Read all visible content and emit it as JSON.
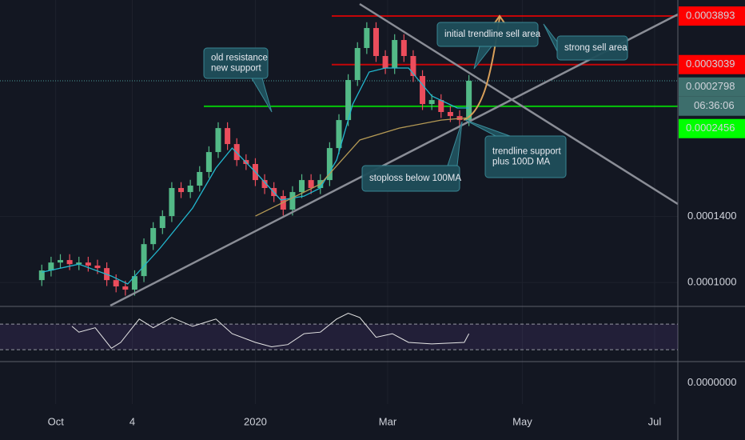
{
  "chart_data": [
    {
      "type": "candlestick",
      "x": [
        18,
        22,
        26,
        30,
        34,
        38,
        42,
        46,
        50,
        54,
        58,
        62,
        66,
        70,
        74,
        78,
        82,
        86,
        90,
        94,
        98,
        102,
        106,
        110,
        114,
        118,
        122,
        126,
        130,
        134,
        138,
        142,
        146,
        150,
        154,
        158,
        162,
        166,
        170,
        174,
        178,
        182,
        186,
        190,
        194,
        198,
        202
      ],
      "open": [
        0.0001012,
        0.0001063,
        0.0001107,
        0.0001121,
        0.0001098,
        0.0001107,
        0.000109,
        0.0001076,
        0.0001012,
        9.8e-05,
        9.64e-05,
        0.0001033,
        0.0001216,
        0.000132,
        0.0001403,
        0.0001619,
        0.0001586,
        0.0001639,
        0.0001757,
        0.0001945,
        0.0002198,
        0.0002026,
        0.0001867,
        0.000183,
        0.0001686,
        0.0001619,
        0.0001554,
        0.000145,
        0.0001586,
        0.0001686,
        0.0001619,
        0.0001686,
        0.0001985,
        0.000229,
        0.0002809,
        0.0003307,
        0.0003662,
        0.0003175,
        0.0002986,
        0.0003445,
        0.0003175,
        0.0002867,
        0.0002485,
        0.0002536,
        0.0002386,
        0.0002337,
        0.000229
      ],
      "high": [
        0.0001095,
        0.000114,
        0.0001155,
        0.0001155,
        0.000114,
        0.000114,
        0.0001123,
        0.0001108,
        0.0001042,
        0.0001009,
        0.0001064,
        0.0001252,
        0.000136,
        0.0001445,
        0.0001668,
        0.0001668,
        0.0001688,
        0.000181,
        0.0002003,
        0.0002264,
        0.0002264,
        0.0002087,
        0.0001923,
        0.0001885,
        0.0001737,
        0.0001668,
        0.0001601,
        0.0001634,
        0.0001737,
        0.0001737,
        0.0001737,
        0.0002045,
        0.0002359,
        0.0002893,
        0.0003406,
        0.0003772,
        0.0003772,
        0.000327,
        0.0003548,
        0.0003548,
        0.000327,
        0.0002953,
        0.0002612,
        0.0002612,
        0.0002458,
        0.0002407,
        0.0002882
      ],
      "low": [
        9.82e-05,
        0.0001031,
        0.0001074,
        0.0001065,
        0.0001065,
        0.0001057,
        0.0001044,
        9.82e-05,
        9.51e-05,
        9.35e-05,
        9.35e-05,
        0.0001002,
        0.000118,
        0.000128,
        0.0001361,
        0.0001538,
        0.0001538,
        0.000159,
        0.0001704,
        0.0001887,
        0.0001965,
        0.0001811,
        0.0001775,
        0.0001635,
        0.000157,
        0.0001507,
        0.0001407,
        0.0001407,
        0.0001538,
        0.000157,
        0.000157,
        0.0001635,
        0.0001925,
        0.0002221,
        0.0002725,
        0.0003208,
        0.000308,
        0.0002896,
        0.0002896,
        0.000308,
        0.0002781,
        0.000241,
        0.000241,
        0.0002314,
        0.0002267,
        0.0002221,
        0.0002221
      ],
      "close": [
        0.0001063,
        0.0001107,
        0.0001121,
        0.0001098,
        0.0001107,
        0.000109,
        0.0001076,
        0.0001012,
        9.8e-05,
        9.64e-05,
        0.0001033,
        0.0001216,
        0.000132,
        0.0001403,
        0.0001619,
        0.0001586,
        0.0001639,
        0.0001757,
        0.0001945,
        0.0002198,
        0.0002026,
        0.0001867,
        0.000183,
        0.0001686,
        0.0001619,
        0.0001554,
        0.000145,
        0.0001586,
        0.0001686,
        0.0001619,
        0.0001686,
        0.0001985,
        0.000229,
        0.0002809,
        0.0003307,
        0.0003662,
        0.0003175,
        0.0002986,
        0.0003445,
        0.0003175,
        0.0002867,
        0.0002485,
        0.0002536,
        0.0002386,
        0.0002337,
        0.000229,
        0.0002798
      ],
      "up_color": "#53b987",
      "down_color": "#eb4d5c",
      "xlim": [
        0,
        292
      ],
      "xticks": [
        {
          "value": 24,
          "label": "Oct"
        },
        {
          "value": 57,
          "label": "4"
        },
        {
          "value": 110,
          "label": "2020"
        },
        {
          "value": 167,
          "label": "Mar"
        },
        {
          "value": 225,
          "label": "May"
        },
        {
          "value": 282,
          "label": "Jul"
        }
      ],
      "ylim": [
        8.85e-05,
        0.0004225
      ],
      "log_scale": true,
      "yticks": [
        {
          "value": 0.00014,
          "label": "0.0001400"
        },
        {
          "value": 0.0001,
          "label": "0.0001000"
        }
      ],
      "grid": true,
      "overlays": [
        {
          "color": "#22b8cf",
          "x": [
            18,
            34,
            48,
            55,
            69,
            83,
            93,
            100,
            110,
            121,
            131,
            138,
            145,
            152,
            159,
            166,
            176,
            186,
            197,
            202
          ],
          "values": [
            0.0001054,
            0.0001098,
            0.0001033,
            9.92e-05,
            0.0001192,
            0.0001462,
            0.0001793,
            0.0001985,
            0.0001757,
            0.0001523,
            0.0001554,
            0.0001619,
            0.0001867,
            0.0002485,
            0.0002926,
            0.0002986,
            0.0002986,
            0.0002589,
            0.0002435,
            0.0002435
          ]
        },
        {
          "color": "#b59a55",
          "x": [
            110,
            138,
            155,
            172,
            190,
            202
          ],
          "values": [
            0.0001403,
            0.0001652,
            0.0002068,
            0.0002198,
            0.000229,
            0.0002318
          ]
        }
      ],
      "price_markers": [
        {
          "value": 0.0003893,
          "color": "#ff0000",
          "text_color": "#ffffff",
          "line": "solid"
        },
        {
          "value": 0.0003039,
          "color": "#ff0000",
          "text_color": "#ffffff",
          "line": "solid"
        },
        {
          "value": 0.0002798,
          "color": "#3d6e6c",
          "text_color": "#ffffff",
          "line": "dotted"
        },
        {
          "value": 0.0002456,
          "color": "#00ff00",
          "text_color": "#000000",
          "line": "solid"
        }
      ],
      "countdown": "06:36:06",
      "annotations": [
        {
          "lines": [
            "old resistance",
            "new support"
          ]
        },
        {
          "lines": [
            "initial trendline sell area"
          ]
        },
        {
          "lines": [
            "strong sell area"
          ]
        },
        {
          "lines": [
            "trendline support",
            "plus 100D MA"
          ]
        },
        {
          "lines": [
            "stoploss below 100MA"
          ]
        }
      ]
    },
    {
      "type": "line",
      "x": [
        31,
        34,
        41,
        48,
        52,
        60,
        66,
        74,
        83,
        93,
        100,
        110,
        117,
        124,
        131,
        138,
        145,
        150,
        155,
        162,
        169,
        176,
        186,
        200,
        202
      ],
      "values": [
        66.6,
        57.4,
        64.3,
        32.3,
        41.4,
        78,
        64.3,
        80.3,
        66.6,
        78,
        55.1,
        41.4,
        34.6,
        38,
        55.1,
        57.4,
        78,
        87.1,
        80.3,
        49.4,
        55.1,
        41.4,
        39.1,
        41.4,
        55.1
      ],
      "color": "#e6e6e6",
      "xlim": [
        0,
        292
      ],
      "ylim": [
        11.4,
        97.7
      ],
      "levels": [
        30,
        70
      ],
      "band_color": "#7e57c2"
    },
    {
      "type": "empty",
      "ylim": [
        -1,
        1
      ],
      "yticks": [
        {
          "value": 0,
          "label": "0.0000000"
        }
      ]
    }
  ]
}
